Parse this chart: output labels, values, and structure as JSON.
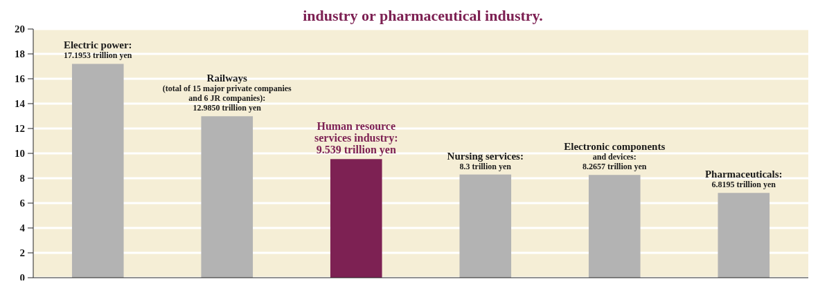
{
  "chart_data": {
    "type": "bar",
    "title": "industry or pharmaceutical industry.",
    "categories": [
      null,
      null,
      null,
      null,
      null,
      null
    ],
    "values": [
      17.1953,
      12.985,
      9.539,
      8.3,
      8.2657,
      6.8195
    ],
    "colors": [
      "#b3b3b3",
      "#b3b3b3",
      "#7d2153",
      "#b3b3b3",
      "#b3b3b3",
      "#b3b3b3"
    ],
    "value_labels": [
      "Electric power:\n17.1953 trillion yen",
      "Railways\n(total of 15 major private companies\nand 6 JR companies):\n12.9850 trillion yen",
      "Human resource\nservices industry:\n9.539 trillion yen",
      "Nursing services:\n8.3 trillion yen",
      "Electronic components\nand devices:\n8.2657 trillion yen",
      "Pharmaceuticals:\n6.8195 trillion yen"
    ],
    "ylim": [
      0,
      20
    ],
    "yticks": [
      0,
      2,
      4,
      6,
      8,
      10,
      12,
      14,
      16,
      18,
      20
    ],
    "grid": "y"
  }
}
